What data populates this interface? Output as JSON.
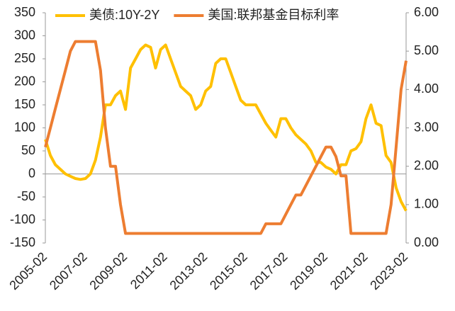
{
  "chart_data": {
    "type": "line",
    "categories": [
      "2005-02",
      null,
      null,
      null,
      null,
      null,
      null,
      null,
      "2007-02",
      null,
      null,
      null,
      null,
      null,
      null,
      null,
      "2009-02",
      null,
      null,
      null,
      null,
      null,
      null,
      null,
      "2011-02",
      null,
      null,
      null,
      null,
      null,
      null,
      null,
      "2013-02",
      null,
      null,
      null,
      null,
      null,
      null,
      null,
      "2015-02",
      null,
      null,
      null,
      null,
      null,
      null,
      null,
      "2017-02",
      null,
      null,
      null,
      null,
      null,
      null,
      null,
      "2019-02",
      null,
      null,
      null,
      null,
      null,
      null,
      null,
      "2021-02",
      null,
      null,
      null,
      null,
      null,
      null,
      null,
      "2023-02"
    ],
    "series": [
      {
        "name": "美债:10Y-2Y",
        "color": "#FFC000",
        "axis": "y",
        "values": [
          75,
          40,
          20,
          10,
          0,
          -5,
          -10,
          -12,
          -10,
          0,
          30,
          80,
          150,
          150,
          170,
          180,
          140,
          230,
          250,
          270,
          280,
          275,
          230,
          270,
          280,
          250,
          220,
          190,
          180,
          170,
          140,
          150,
          180,
          190,
          240,
          250,
          250,
          220,
          190,
          160,
          150,
          150,
          150,
          130,
          110,
          95,
          80,
          120,
          120,
          100,
          85,
          75,
          65,
          50,
          25,
          25,
          15,
          10,
          0,
          20,
          20,
          50,
          55,
          70,
          120,
          150,
          110,
          105,
          40,
          25,
          -30,
          -60,
          -80
        ]
      },
      {
        "name": "美国:联邦基金目标利率",
        "color": "#ED7D31",
        "axis": "y2",
        "values": [
          2.5,
          3.0,
          3.5,
          4.0,
          4.5,
          5.0,
          5.25,
          5.25,
          5.25,
          5.25,
          5.25,
          4.5,
          3.0,
          2.0,
          2.0,
          1.0,
          0.25,
          0.25,
          0.25,
          0.25,
          0.25,
          0.25,
          0.25,
          0.25,
          0.25,
          0.25,
          0.25,
          0.25,
          0.25,
          0.25,
          0.25,
          0.25,
          0.25,
          0.25,
          0.25,
          0.25,
          0.25,
          0.25,
          0.25,
          0.25,
          0.25,
          0.25,
          0.25,
          0.25,
          0.5,
          0.5,
          0.5,
          0.5,
          0.75,
          1.0,
          1.25,
          1.25,
          1.5,
          1.75,
          2.0,
          2.25,
          2.5,
          2.5,
          2.25,
          1.75,
          1.75,
          0.25,
          0.25,
          0.25,
          0.25,
          0.25,
          0.25,
          0.25,
          0.25,
          1.0,
          2.5,
          4.0,
          4.75
        ]
      }
    ],
    "ylim": [
      -150,
      350
    ],
    "yticks": [
      350,
      300,
      250,
      200,
      150,
      100,
      50,
      0,
      -50,
      -100,
      -150
    ],
    "y2lim": [
      0,
      6
    ],
    "y2ticks": [
      {
        "value": 6,
        "label": "6.00"
      },
      {
        "value": 5,
        "label": "5.00"
      },
      {
        "value": 4,
        "label": "4.00"
      },
      {
        "value": 3,
        "label": "3.00"
      },
      {
        "value": 2,
        "label": "2.00"
      },
      {
        "value": 1,
        "label": "1.00"
      },
      {
        "value": 0,
        "label": "0.00"
      }
    ],
    "legend": "top"
  }
}
